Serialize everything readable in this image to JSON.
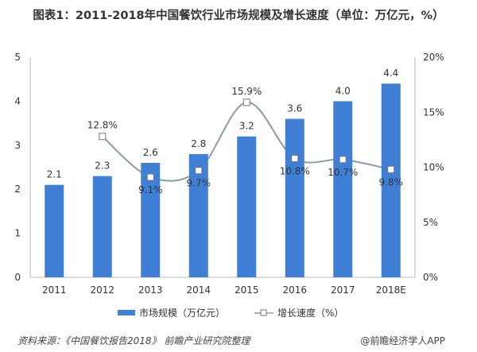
{
  "title": "图表1：2011-2018年中国餐饮行业市场规模及增长速度（单位：万亿元，%）",
  "source": "资料来源：《中国餐饮报告2018》 前瞻产业研究院整理",
  "brand": "@前瞻经济学人APP",
  "chart_data": {
    "type": "bar+line",
    "title": "图表1：2011-2018年中国餐饮行业市场规模及增长速度（单位：万亿元，%）",
    "categories": [
      "2011",
      "2012",
      "2013",
      "2014",
      "2015",
      "2016",
      "2017",
      "2018E"
    ],
    "series": [
      {
        "name": "市场规模（万亿元）",
        "type": "bar",
        "axis": "left",
        "color": "#3f7fd6",
        "values": [
          2.1,
          2.3,
          2.6,
          2.8,
          3.2,
          3.6,
          4.0,
          4.4
        ],
        "labels": [
          "2.1",
          "2.3",
          "2.6",
          "2.8",
          "3.2",
          "3.6",
          "4.0",
          "4.4"
        ]
      },
      {
        "name": "增长速度（%）",
        "type": "line",
        "axis": "right",
        "color": "#8a9aa8",
        "values": [
          null,
          12.8,
          9.1,
          9.7,
          15.9,
          10.8,
          10.7,
          9.8
        ],
        "labels": [
          "",
          "12.8%",
          "9.1%",
          "9.7%",
          "15.9%",
          "10.8%",
          "10.7%",
          "9.8%"
        ]
      }
    ],
    "left_axis": {
      "ylim": [
        0,
        5
      ],
      "ticks": [
        "0",
        "1",
        "2",
        "3",
        "4",
        "5"
      ]
    },
    "right_axis": {
      "ylim": [
        0,
        20
      ],
      "ticks": [
        "0%",
        "5%",
        "10%",
        "15%",
        "20%"
      ]
    },
    "grid": false,
    "legend_position": "bottom"
  }
}
